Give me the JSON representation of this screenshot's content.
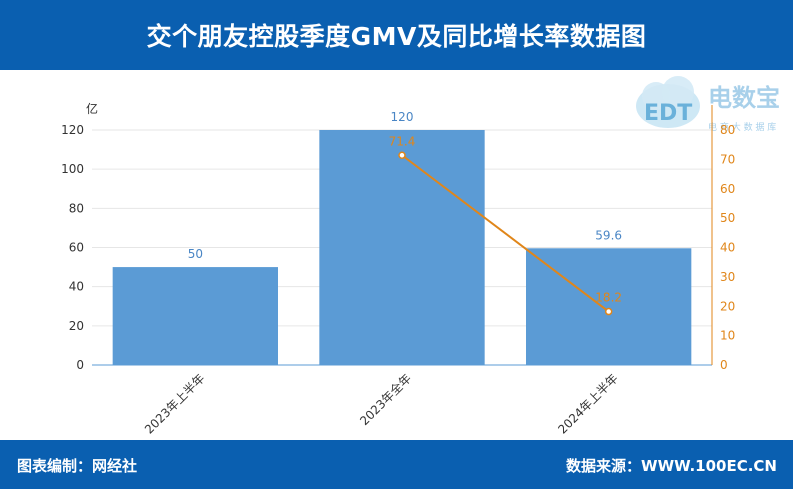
{
  "header": {
    "title": "交个朋友控股季度GMV及同比增长率数据图"
  },
  "footer": {
    "editor": "图表编制：网经社",
    "source": "数据来源：WWW.100EC.CN"
  },
  "watermark": {
    "logo_text": "电数宝",
    "sub_text": "电 商 大 数 据 库",
    "mark": "EDT"
  },
  "colors": {
    "brand": "#0a5fb0",
    "bar": "#5b9bd5",
    "line": "#e0861a",
    "bar_label": "#4a86c5"
  },
  "chart_data": {
    "type": "bar",
    "title": "交个朋友控股季度GMV及同比增长率数据图",
    "categories": [
      "2023年上半年",
      "2023年全年",
      "2024年上半年"
    ],
    "ylabel": "亿",
    "ylim": [
      0,
      120
    ],
    "yticks": [
      0,
      20,
      40,
      60,
      80,
      100,
      120
    ],
    "y2lim": [
      0,
      80
    ],
    "y2ticks": [
      0,
      10,
      20,
      30,
      40,
      50,
      60,
      70,
      80
    ],
    "grid": true,
    "series": [
      {
        "type": "bar",
        "axis": "left",
        "values": [
          50,
          120,
          59.6
        ],
        "labels": [
          "50",
          "120",
          "59.6"
        ]
      },
      {
        "type": "line",
        "axis": "right",
        "values": [
          null,
          71.4,
          18.2
        ],
        "labels": [
          "",
          "71.4",
          "18.2"
        ]
      }
    ]
  }
}
